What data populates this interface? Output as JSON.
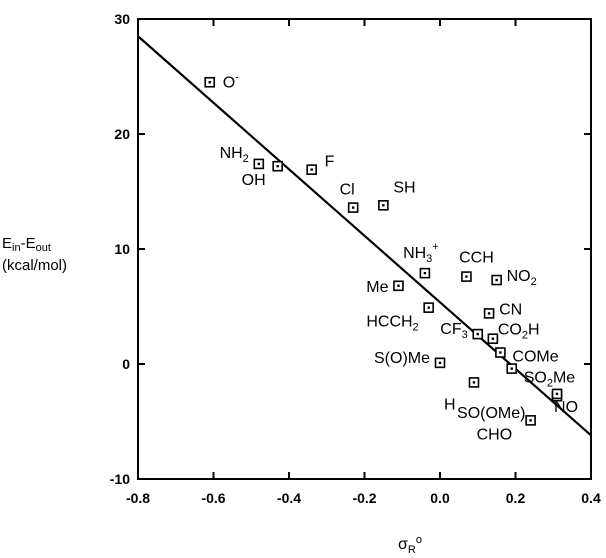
{
  "chart_data": {
    "type": "scatter",
    "title": "",
    "xlabel": {
      "main": "σ",
      "sub": "R",
      "sup": "o"
    },
    "ylabel": {
      "line1": {
        "a": "E",
        "a_sub": "in",
        "b": "-E",
        "b_sub": "out"
      },
      "line2": "(kcal/mol)"
    },
    "xlim": [
      -0.8,
      0.4
    ],
    "ylim": [
      -10,
      30
    ],
    "x_ticks": [
      "-0.8",
      "-0.6",
      "-0.4",
      "-0.2",
      "0.0",
      "0.2",
      "0.4"
    ],
    "y_ticks": [
      "-10",
      "0",
      "10",
      "20",
      "30"
    ],
    "grid": false,
    "fit_line": {
      "x": [
        -0.8,
        0.4
      ],
      "y": [
        28.5,
        -6.2
      ]
    },
    "points": [
      {
        "label": "O",
        "sup": "-",
        "x": -0.61,
        "y": 24.5
      },
      {
        "label": "NH",
        "sub": "2",
        "x": -0.48,
        "y": 17.4
      },
      {
        "label": "OH",
        "x": -0.43,
        "y": 17.2
      },
      {
        "label": "F",
        "x": -0.34,
        "y": 16.9
      },
      {
        "label": "Cl",
        "x": -0.23,
        "y": 13.6
      },
      {
        "label": "SH",
        "x": -0.15,
        "y": 13.8
      },
      {
        "label": "NH",
        "sub": "3",
        "sup": "+",
        "x": -0.04,
        "y": 7.9
      },
      {
        "label": "Me",
        "x": -0.11,
        "y": 6.8
      },
      {
        "label": "CCH",
        "x": 0.07,
        "y": 7.6
      },
      {
        "label": "NO",
        "sub": "2",
        "x": 0.15,
        "y": 7.3
      },
      {
        "label": "HCCH",
        "sub": "2",
        "x": -0.03,
        "y": 4.9
      },
      {
        "label": "CN",
        "x": 0.13,
        "y": 4.4
      },
      {
        "label": "CF",
        "sub": "3",
        "x": 0.1,
        "y": 2.6
      },
      {
        "label": "CO",
        "sub": "2",
        "after": "H",
        "x": 0.14,
        "y": 2.2
      },
      {
        "label": "COMe",
        "x": 0.16,
        "y": 1.0
      },
      {
        "label": "S(O)Me",
        "x": 0.0,
        "y": 0.1
      },
      {
        "label": "SO",
        "sub": "2",
        "after": "Me",
        "x": 0.19,
        "y": -0.4
      },
      {
        "label": "H",
        "x": 0.09,
        "y": -1.6
      },
      {
        "label": "SO(OMe)",
        "x": 0.31,
        "y": -2.8
      },
      {
        "label": "NO",
        "x": 0.31,
        "y": -2.6
      },
      {
        "label": "CHO",
        "x": 0.24,
        "y": -4.9
      }
    ]
  }
}
